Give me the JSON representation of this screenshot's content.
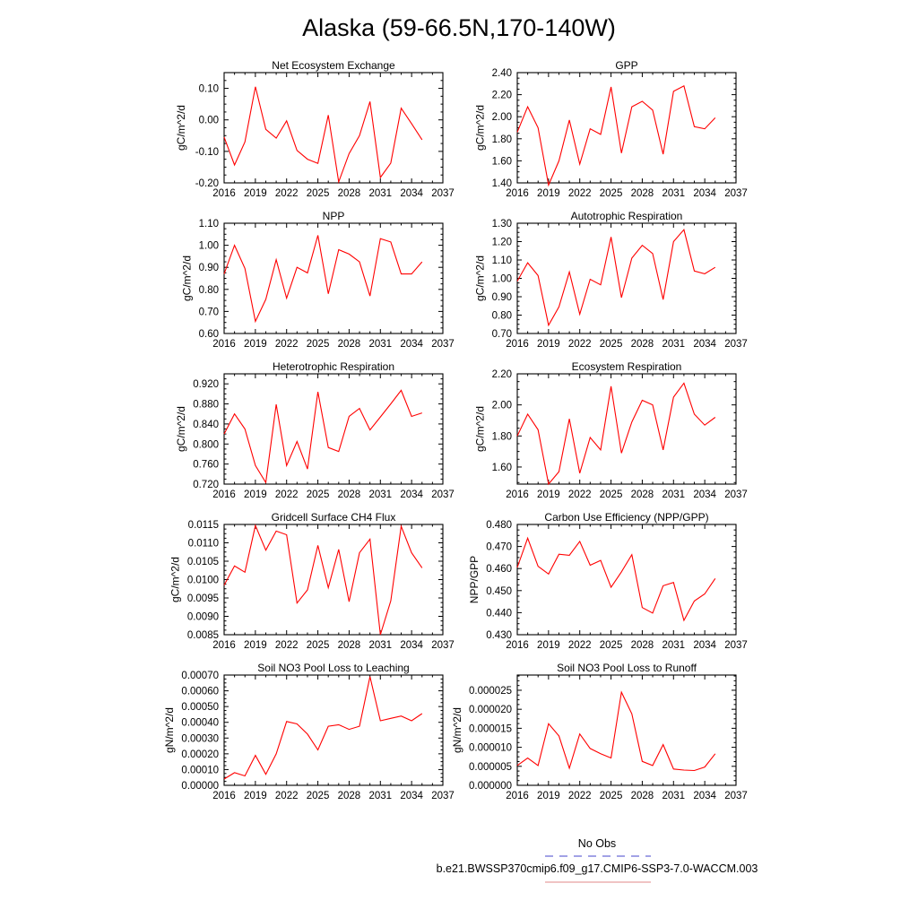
{
  "figure": {
    "title": "Alaska (59-66.5N,170-140W)",
    "legend": {
      "entries": [
        {
          "label": "No Obs",
          "color": "#6a6ad6",
          "dash": "dashed"
        },
        {
          "label": "b.e21.BWSSP370cmip6.f09_g17.CMIP6-SSP3-7.0-WACCM.003",
          "color": "#e8a0a0",
          "dash": "solid"
        }
      ]
    }
  },
  "chart_data": [
    {
      "type": "line",
      "title": "Net Ecosystem Exchange",
      "ylabel": "gC/m^2/d",
      "xlabel": "",
      "xlim": [
        2016,
        2037
      ],
      "xticks": [
        "2016",
        "2019",
        "2022",
        "2025",
        "2028",
        "2031",
        "2034",
        "2037"
      ],
      "ylim": [
        -0.2,
        0.15
      ],
      "yticks": [
        "-0.20",
        "-0.10",
        "0.00",
        "0.10"
      ],
      "series": [
        {
          "color": "#ff0000",
          "x": [
            2016,
            2017,
            2018,
            2019,
            2020,
            2021,
            2022,
            2023,
            2024,
            2025,
            2026,
            2027,
            2028,
            2029,
            2030,
            2031,
            2032,
            2033,
            2034,
            2035
          ],
          "y": [
            -0.055,
            -0.143,
            -0.07,
            0.105,
            -0.03,
            -0.058,
            -0.003,
            -0.097,
            -0.125,
            -0.138,
            0.015,
            -0.197,
            -0.107,
            -0.05,
            0.058,
            -0.183,
            -0.137,
            0.037,
            -0.012,
            -0.063
          ]
        }
      ]
    },
    {
      "type": "line",
      "title": "GPP",
      "ylabel": "gC/m^2/d",
      "xlabel": "",
      "xlim": [
        2016,
        2037
      ],
      "xticks": [
        "2016",
        "2019",
        "2022",
        "2025",
        "2028",
        "2031",
        "2034",
        "2037"
      ],
      "ylim": [
        1.4,
        2.4
      ],
      "yticks": [
        "1.40",
        "1.60",
        "1.80",
        "2.00",
        "2.20",
        "2.40"
      ],
      "series": [
        {
          "color": "#ff0000",
          "x": [
            2016,
            2017,
            2018,
            2019,
            2020,
            2021,
            2022,
            2023,
            2024,
            2025,
            2026,
            2027,
            2028,
            2029,
            2030,
            2031,
            2032,
            2033,
            2034,
            2035
          ],
          "y": [
            1.86,
            2.09,
            1.9,
            1.38,
            1.6,
            1.97,
            1.57,
            1.89,
            1.84,
            2.27,
            1.67,
            2.09,
            2.14,
            2.06,
            1.66,
            2.23,
            2.28,
            1.91,
            1.89,
            1.99
          ]
        }
      ]
    },
    {
      "type": "line",
      "title": "NPP",
      "ylabel": "gC/m^2/d",
      "xlabel": "",
      "xlim": [
        2016,
        2037
      ],
      "xticks": [
        "2016",
        "2019",
        "2022",
        "2025",
        "2028",
        "2031",
        "2034",
        "2037"
      ],
      "ylim": [
        0.6,
        1.1
      ],
      "yticks": [
        "0.60",
        "0.70",
        "0.80",
        "0.90",
        "1.00",
        "1.10"
      ],
      "series": [
        {
          "color": "#ff0000",
          "x": [
            2016,
            2017,
            2018,
            2019,
            2020,
            2021,
            2022,
            2023,
            2024,
            2025,
            2026,
            2027,
            2028,
            2029,
            2030,
            2031,
            2032,
            2033,
            2034,
            2035
          ],
          "y": [
            0.87,
            1.0,
            0.895,
            0.655,
            0.755,
            0.935,
            0.76,
            0.9,
            0.875,
            1.045,
            0.78,
            0.98,
            0.96,
            0.925,
            0.77,
            1.03,
            1.015,
            0.87,
            0.87,
            0.925
          ]
        }
      ]
    },
    {
      "type": "line",
      "title": "Autotrophic Respiration",
      "ylabel": "gC/m^2/d",
      "xlabel": "",
      "xlim": [
        2016,
        2037
      ],
      "xticks": [
        "2016",
        "2019",
        "2022",
        "2025",
        "2028",
        "2031",
        "2034",
        "2037"
      ],
      "ylim": [
        0.7,
        1.3
      ],
      "yticks": [
        "0.70",
        "0.80",
        "0.90",
        "1.00",
        "1.10",
        "1.20",
        "1.30"
      ],
      "series": [
        {
          "color": "#ff0000",
          "x": [
            2016,
            2017,
            2018,
            2019,
            2020,
            2021,
            2022,
            2023,
            2024,
            2025,
            2026,
            2027,
            2028,
            2029,
            2030,
            2031,
            2032,
            2033,
            2034,
            2035
          ],
          "y": [
            0.985,
            1.085,
            1.015,
            0.745,
            0.845,
            1.035,
            0.805,
            0.995,
            0.965,
            1.225,
            0.895,
            1.11,
            1.18,
            1.135,
            0.885,
            1.2,
            1.265,
            1.04,
            1.025,
            1.06
          ]
        }
      ]
    },
    {
      "type": "line",
      "title": "Heterotrophic Respiration",
      "ylabel": "gC/m^2/d",
      "xlabel": "",
      "xlim": [
        2016,
        2037
      ],
      "xticks": [
        "2016",
        "2019",
        "2022",
        "2025",
        "2028",
        "2031",
        "2034",
        "2037"
      ],
      "ylim": [
        0.72,
        0.94
      ],
      "yticks": [
        "0.720",
        "0.760",
        "0.800",
        "0.840",
        "0.880",
        "0.920"
      ],
      "series": [
        {
          "color": "#ff0000",
          "x": [
            2016,
            2017,
            2018,
            2019,
            2020,
            2021,
            2022,
            2023,
            2024,
            2025,
            2026,
            2027,
            2028,
            2029,
            2030,
            2031,
            2032,
            2033,
            2034,
            2035
          ],
          "y": [
            0.82,
            0.86,
            0.83,
            0.757,
            0.723,
            0.879,
            0.757,
            0.805,
            0.75,
            0.904,
            0.793,
            0.785,
            0.855,
            0.871,
            0.828,
            0.854,
            0.88,
            0.907,
            0.855,
            0.862
          ]
        }
      ]
    },
    {
      "type": "line",
      "title": "Ecosystem Respiration",
      "ylabel": "gC/m^2/d",
      "xlabel": "",
      "xlim": [
        2016,
        2037
      ],
      "xticks": [
        "2016",
        "2019",
        "2022",
        "2025",
        "2028",
        "2031",
        "2034",
        "2037"
      ],
      "ylim": [
        1.49,
        2.2
      ],
      "yticks": [
        "1.60",
        "1.80",
        "2.00",
        "2.20"
      ],
      "series": [
        {
          "color": "#ff0000",
          "x": [
            2016,
            2017,
            2018,
            2019,
            2020,
            2021,
            2022,
            2023,
            2024,
            2025,
            2026,
            2027,
            2028,
            2029,
            2030,
            2031,
            2032,
            2033,
            2034,
            2035
          ],
          "y": [
            1.8,
            1.94,
            1.84,
            1.49,
            1.57,
            1.91,
            1.56,
            1.79,
            1.71,
            2.12,
            1.69,
            1.89,
            2.03,
            2.0,
            1.71,
            2.05,
            2.14,
            1.94,
            1.87,
            1.92
          ]
        }
      ]
    },
    {
      "type": "line",
      "title": "Gridcell Surface CH4 Flux",
      "ylabel": "gC/m^2/d",
      "xlabel": "",
      "xlim": [
        2016,
        2037
      ],
      "xticks": [
        "2016",
        "2019",
        "2022",
        "2025",
        "2028",
        "2031",
        "2034",
        "2037"
      ],
      "ylim": [
        0.0085,
        0.0115
      ],
      "yticks": [
        "0.0085",
        "0.0090",
        "0.0095",
        "0.0100",
        "0.0105",
        "0.0110",
        "0.0115"
      ],
      "series": [
        {
          "color": "#ff0000",
          "x": [
            2016,
            2017,
            2018,
            2019,
            2020,
            2021,
            2022,
            2023,
            2024,
            2025,
            2026,
            2027,
            2028,
            2029,
            2030,
            2031,
            2032,
            2033,
            2034,
            2035
          ],
          "y": [
            0.00985,
            0.01037,
            0.0102,
            0.01147,
            0.0108,
            0.01132,
            0.01122,
            0.00936,
            0.00972,
            0.01093,
            0.00978,
            0.01082,
            0.0094,
            0.01073,
            0.0111,
            0.0085,
            0.00942,
            0.01145,
            0.01073,
            0.01032
          ]
        }
      ]
    },
    {
      "type": "line",
      "title": "Carbon Use Efficiency (NPP/GPP)",
      "ylabel": "NPP/GPP",
      "xlabel": "",
      "xlim": [
        2016,
        2037
      ],
      "xticks": [
        "2016",
        "2019",
        "2022",
        "2025",
        "2028",
        "2031",
        "2034",
        "2037"
      ],
      "ylim": [
        0.43,
        0.48
      ],
      "yticks": [
        "0.430",
        "0.440",
        "0.450",
        "0.460",
        "0.470",
        "0.480"
      ],
      "series": [
        {
          "color": "#ff0000",
          "x": [
            2016,
            2017,
            2018,
            2019,
            2020,
            2021,
            2022,
            2023,
            2024,
            2025,
            2026,
            2027,
            2028,
            2029,
            2030,
            2031,
            2032,
            2033,
            2034,
            2035
          ],
          "y": [
            0.4605,
            0.4738,
            0.461,
            0.4575,
            0.4665,
            0.466,
            0.4723,
            0.4615,
            0.4637,
            0.4515,
            0.4585,
            0.4663,
            0.4423,
            0.4398,
            0.4522,
            0.4537,
            0.4365,
            0.4453,
            0.4485,
            0.4555
          ]
        }
      ]
    },
    {
      "type": "line",
      "title": "Soil NO3 Pool Loss to Leaching",
      "ylabel": "gN/m^2/d",
      "xlabel": "",
      "xlim": [
        2016,
        2037
      ],
      "xticks": [
        "2016",
        "2019",
        "2022",
        "2025",
        "2028",
        "2031",
        "2034",
        "2037"
      ],
      "ylim": [
        0,
        0.0007
      ],
      "yticks": [
        "0.00000",
        "0.00010",
        "0.00020",
        "0.00030",
        "0.00040",
        "0.00050",
        "0.00060",
        "0.00070"
      ],
      "series": [
        {
          "color": "#ff0000",
          "x": [
            2016,
            2017,
            2018,
            2019,
            2020,
            2021,
            2022,
            2023,
            2024,
            2025,
            2026,
            2027,
            2028,
            2029,
            2030,
            2031,
            2032,
            2033,
            2034,
            2035
          ],
          "y": [
            4e-05,
            8e-05,
            6e-05,
            0.00019,
            7e-05,
            0.0002,
            0.000405,
            0.00039,
            0.000325,
            0.000225,
            0.000375,
            0.000385,
            0.000355,
            0.000375,
            0.00069,
            0.00041,
            0.000425,
            0.00044,
            0.00041,
            0.000455
          ]
        }
      ]
    },
    {
      "type": "line",
      "title": "Soil NO3 Pool Loss to Runoff",
      "ylabel": "gN/m^2/d",
      "xlabel": "",
      "xlim": [
        2016,
        2037
      ],
      "xticks": [
        "2016",
        "2019",
        "2022",
        "2025",
        "2028",
        "2031",
        "2034",
        "2037"
      ],
      "ylim": [
        0,
        2.9e-05
      ],
      "yticks": [
        "0.000000",
        "0.000005",
        "0.000010",
        "0.000015",
        "0.000020",
        "0.000025"
      ],
      "series": [
        {
          "color": "#ff0000",
          "x": [
            2016,
            2017,
            2018,
            2019,
            2020,
            2021,
            2022,
            2023,
            2024,
            2025,
            2026,
            2027,
            2028,
            2029,
            2030,
            2031,
            2032,
            2033,
            2034,
            2035
          ],
          "y": [
            5.2e-06,
            7.2e-06,
            5.2e-06,
            1.62e-05,
            1.3e-05,
            4.5e-06,
            1.35e-05,
            9.7e-06,
            8.3e-06,
            7.2e-06,
            2.45e-05,
            1.88e-05,
            6.3e-06,
            5.2e-06,
            1.07e-05,
            4.3e-06,
            4e-06,
            3.9e-06,
            4.8e-06,
            8.3e-06
          ]
        }
      ]
    }
  ]
}
